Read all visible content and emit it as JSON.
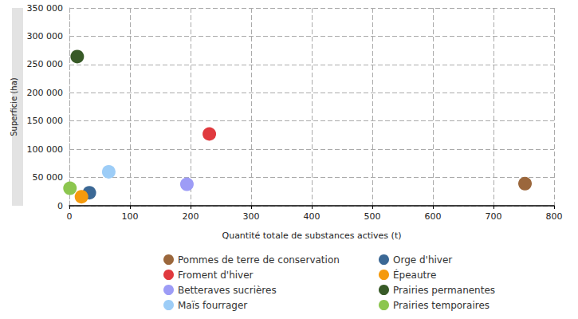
{
  "chart_data": {
    "type": "scatter",
    "x_label": "Quantité totale de substances actives (t)",
    "y_label": "Superficie (ha)",
    "xlim": [
      0,
      800
    ],
    "xticks": [
      0,
      100,
      200,
      300,
      400,
      500,
      600,
      700,
      800
    ],
    "ylim": [
      0,
      350000
    ],
    "yticks": [
      0,
      {
        "value": 50000,
        "label": "50 000"
      },
      {
        "value": 100000,
        "label": "100 000"
      },
      {
        "value": 150000,
        "label": "150 000"
      },
      {
        "value": 200000,
        "label": "200 000"
      },
      {
        "value": 250000,
        "label": "250 000"
      },
      {
        "value": 300000,
        "label": "300 000"
      },
      {
        "value": 350000,
        "label": "350 000"
      }
    ],
    "grid": true,
    "legend": "bottom",
    "marker": "circle",
    "series": [
      {
        "name": "Pommes de terre de conservation",
        "color": "#9b673c",
        "x": [
          752
        ],
        "values": [
          39000
        ]
      },
      {
        "name": "Froment d'hiver",
        "color": "#e0393e",
        "x": [
          231
        ],
        "values": [
          127000
        ]
      },
      {
        "name": "Betteraves sucrières",
        "color": "#9d9cf6",
        "x": [
          194
        ],
        "values": [
          38000
        ]
      },
      {
        "name": "Maïs fourrager",
        "color": "#9dcdf7",
        "x": [
          65
        ],
        "values": [
          60000
        ]
      },
      {
        "name": "Orge d'hiver",
        "color": "#3b6895",
        "x": [
          33
        ],
        "values": [
          23000
        ]
      },
      {
        "name": "Épeautre",
        "color": "#f59a0c",
        "x": [
          20
        ],
        "values": [
          16000
        ]
      },
      {
        "name": "Prairies permanentes",
        "color": "#385a27",
        "x": [
          13
        ],
        "values": [
          264000
        ]
      },
      {
        "name": "Prairies temporaires",
        "color": "#8cc64f",
        "x": [
          1
        ],
        "values": [
          31000
        ]
      }
    ]
  }
}
